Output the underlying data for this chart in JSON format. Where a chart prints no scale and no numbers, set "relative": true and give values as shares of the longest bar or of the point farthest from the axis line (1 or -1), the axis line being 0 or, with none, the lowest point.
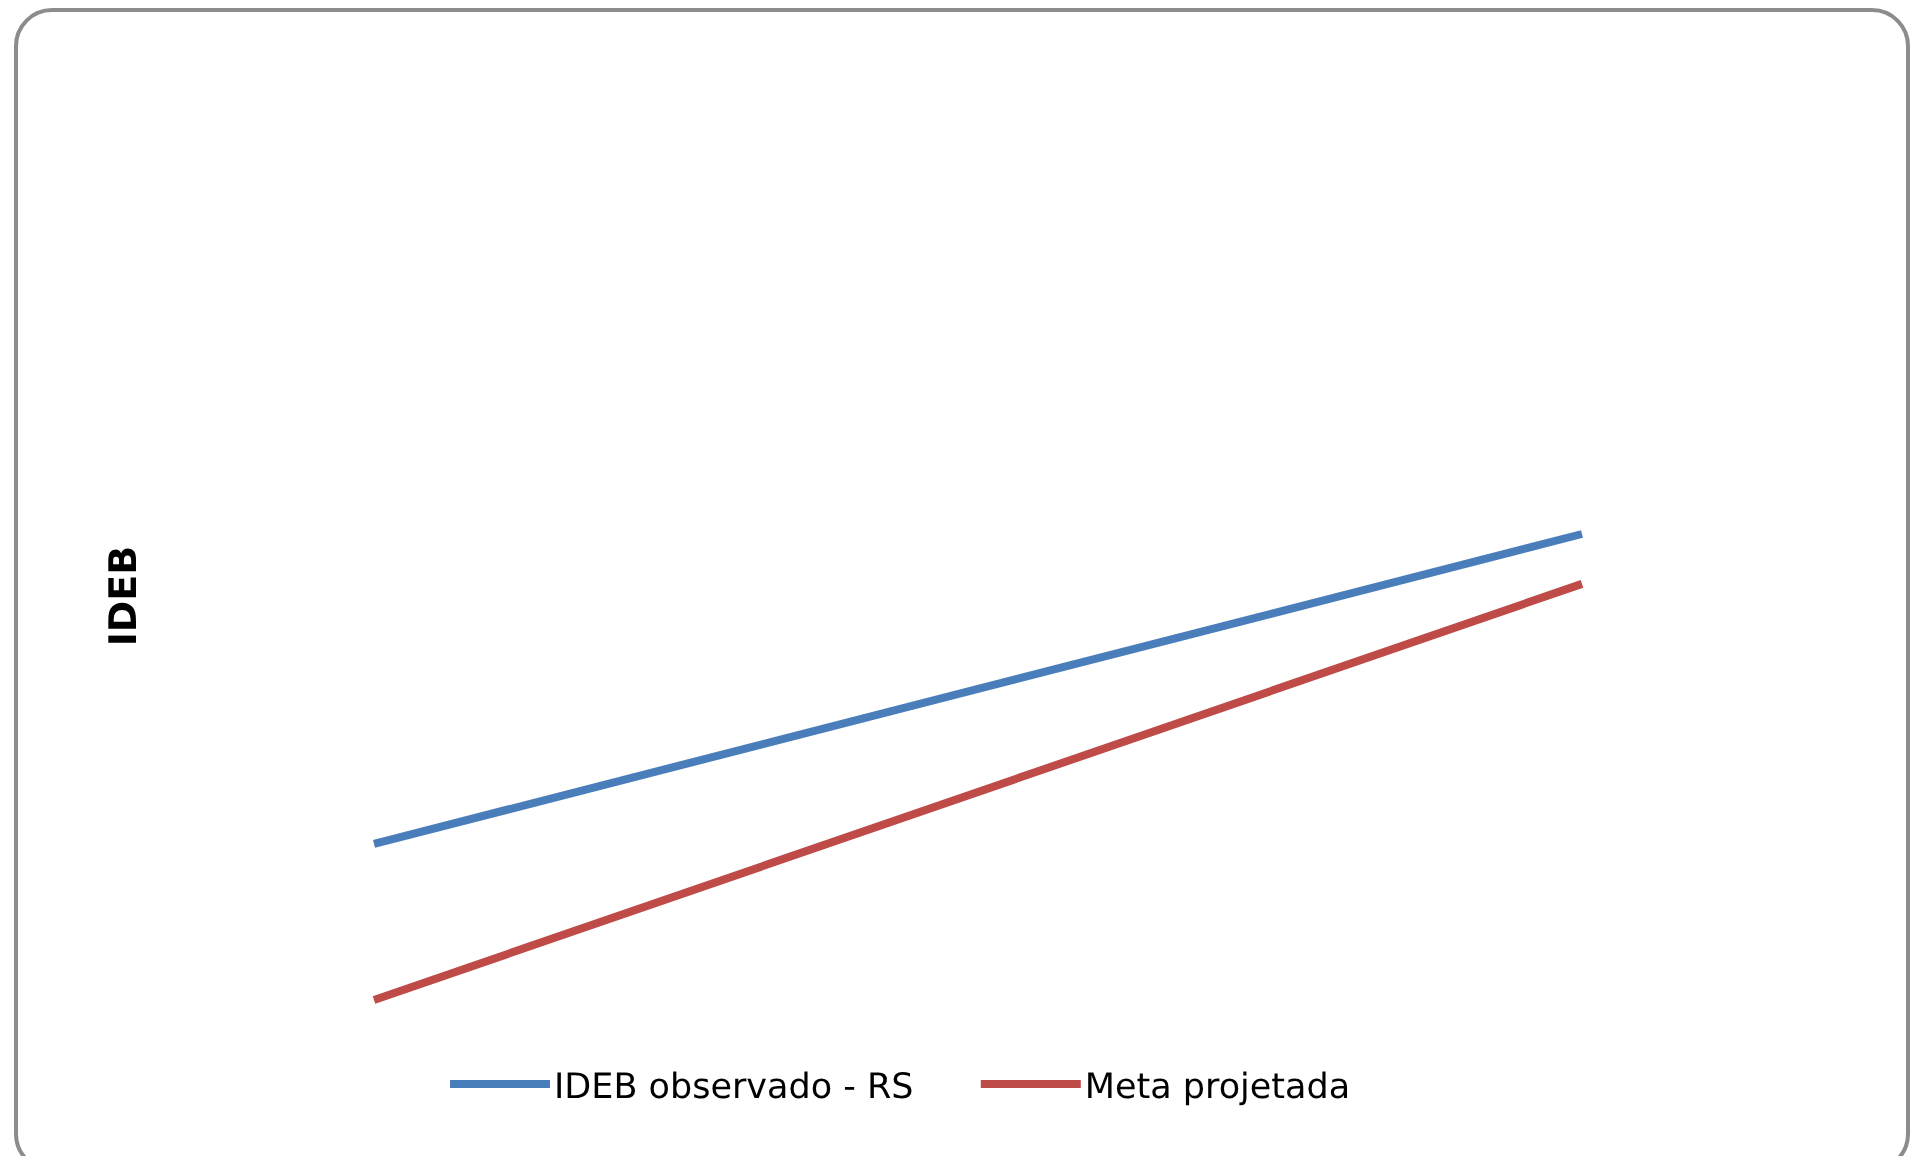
{
  "chart_data": {
    "type": "line",
    "ylabel": "IDEB",
    "relative": true,
    "categories": [
      null,
      null
    ],
    "series": [
      {
        "name": "IDEB observado - RS",
        "color": "#4a7ebb",
        "values": [
          0.335,
          1
        ]
      },
      {
        "name": "Meta projetada",
        "color": "#be4b48",
        "values": [
          0,
          0.893
        ]
      }
    ],
    "legend": "bottom",
    "grid": false,
    "marker": "none",
    "line_style": "solid"
  }
}
